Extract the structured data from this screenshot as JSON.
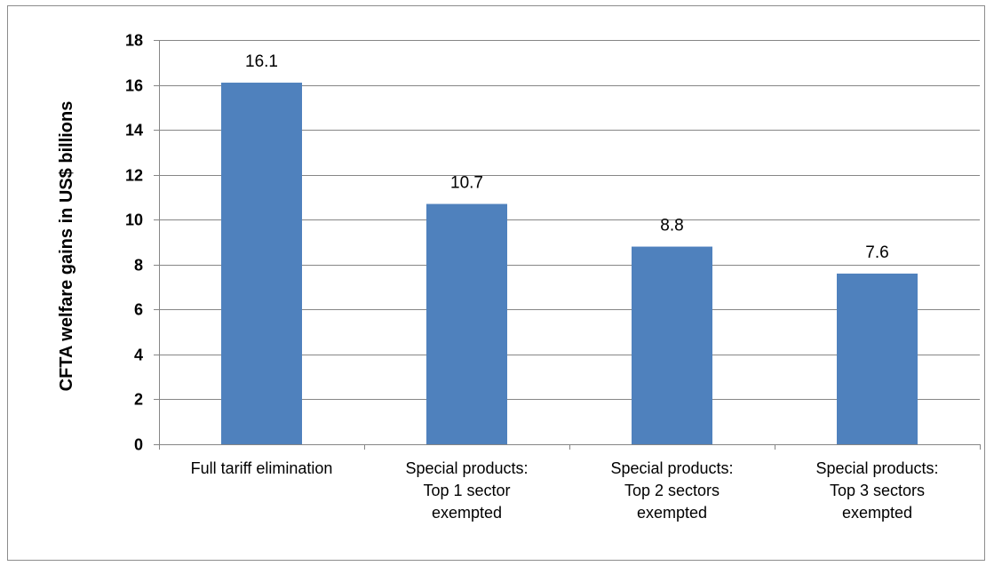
{
  "chart_data": {
    "type": "bar",
    "title": "",
    "xlabel": "",
    "ylabel": "CFTA welfare gains in US$ billions",
    "categories": [
      [
        "Full tariff elimination"
      ],
      [
        "Special products:",
        "Top 1 sector",
        "exempted"
      ],
      [
        "Special products:",
        "Top 2 sectors",
        "exempted"
      ],
      [
        "Special products:",
        "Top 3 sectors",
        "exempted"
      ]
    ],
    "values": [
      16.1,
      10.7,
      8.8,
      7.6
    ],
    "data_labels": [
      "16.1",
      "10.7",
      "8.8",
      "7.6"
    ],
    "ylim": [
      0,
      18
    ],
    "yticks": [
      0,
      2,
      4,
      6,
      8,
      10,
      12,
      14,
      16,
      18
    ],
    "grid": true,
    "legend": "none",
    "bar_color": "#4F81BD"
  }
}
